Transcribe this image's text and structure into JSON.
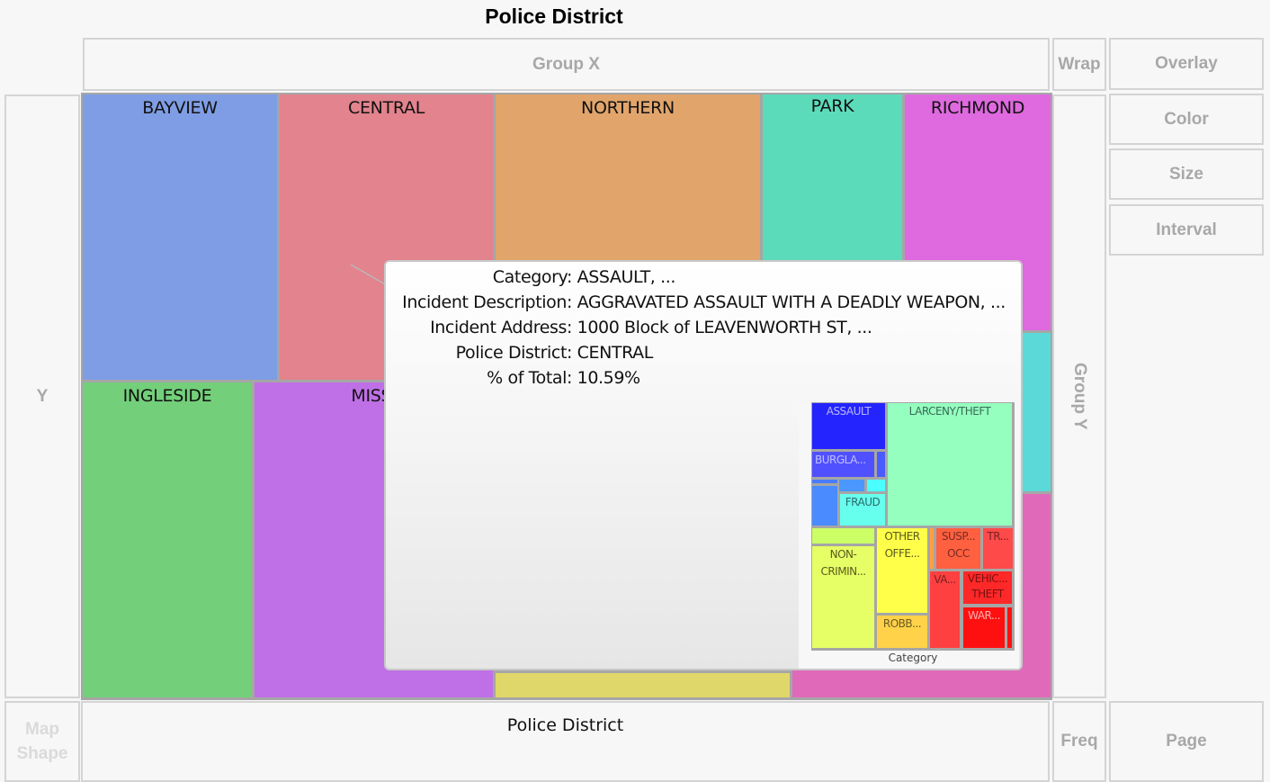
{
  "chart_data": {
    "type": "treemap",
    "title": "Police District",
    "xlabel": "Police District",
    "categories": [
      "BAYVIEW",
      "CENTRAL",
      "NORTHERN",
      "PARK",
      "RICHMOND",
      "INGLESIDE",
      "MISSI"
    ],
    "colors": {
      "BAYVIEW": "#7f9de4",
      "CENTRAL": "#e2838d",
      "NORTHERN": "#e1a56b",
      "PARK": "#5cdbbb",
      "RICHMOND": "#df69df",
      "INGLESIDE": "#73cf7a",
      "MISSI": "#bf70e6",
      "cyan_block": "#5bd9d9",
      "yellow_block": "#dfd76a",
      "pink_block": "#e06ab9"
    }
  },
  "roles": {
    "group_x": "Group X",
    "wrap": "Wrap",
    "overlay": "Overlay",
    "color": "Color",
    "size": "Size",
    "interval": "Interval",
    "y": "Y",
    "group_y": "Group Y",
    "map_shape": "Map Shape",
    "freq": "Freq",
    "page": "Page"
  },
  "tooltip": {
    "rows": [
      {
        "k": "Category:",
        "v": "ASSAULT, ..."
      },
      {
        "k": "Incident Description:",
        "v": "AGGRAVATED ASSAULT WITH A DEADLY WEAPON, ..."
      },
      {
        "k": "Incident Address:",
        "v": "1000 Block of LEAVENWORTH ST, ..."
      },
      {
        "k": "Police District:",
        "v": "CENTRAL"
      },
      {
        "k": "% of Total:",
        "v": "10.59%"
      }
    ],
    "mini_treemap": {
      "xlabel": "Category",
      "labels": [
        "ASSAULT",
        "LARCENY/THEFT",
        "BURGLA...",
        "FRAUD",
        "NON-CRIMIN...",
        "OTHER OFFE...",
        "ROBB...",
        "SUSP... OCC",
        "TR...",
        "VA...",
        "VEHIC... THEFT",
        "WAR..."
      ]
    }
  }
}
